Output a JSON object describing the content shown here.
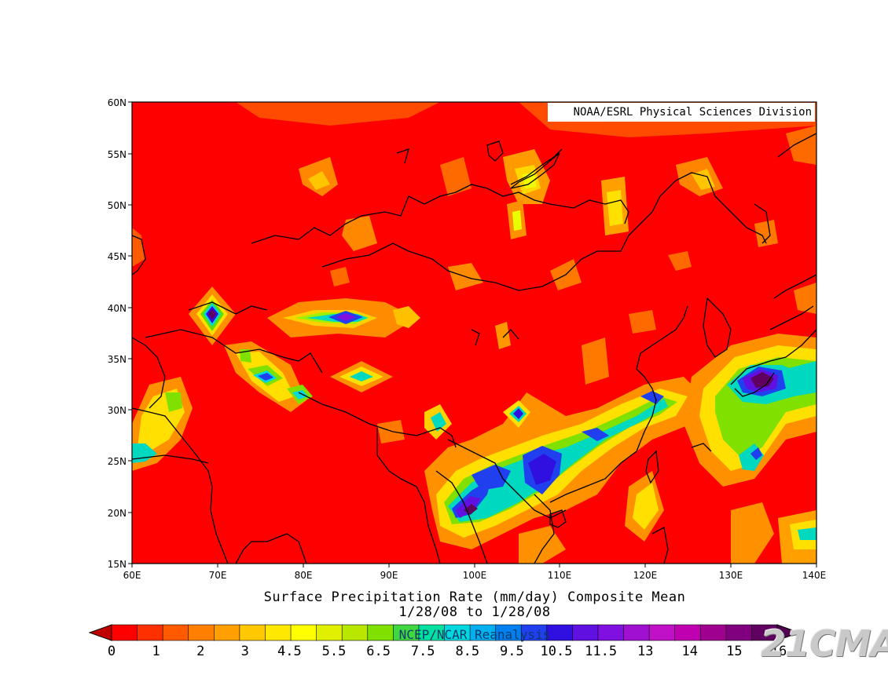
{
  "credit": "NOAA/ESRL Physical Sciences Division",
  "title_line1": "Surface Precipitation Rate (mm/day) Composite Mean",
  "title_line2": "1/28/08  to 1/28/08",
  "source_label": "NCEP/NCAR Reanalysis",
  "watermark": "21CMA",
  "lat_ticks": [
    "60N",
    "55N",
    "50N",
    "45N",
    "40N",
    "35N",
    "30N",
    "25N",
    "20N",
    "15N"
  ],
  "lon_ticks": [
    "60E",
    "70E",
    "80E",
    "90E",
    "100E",
    "110E",
    "120E",
    "130E",
    "140E"
  ],
  "colorbar": {
    "labels": [
      "0",
      "1",
      "2",
      "3",
      "4.5",
      "5.5",
      "6.5",
      "7.5",
      "8.5",
      "9.5",
      "10.5",
      "11.5",
      "13",
      "14",
      "15",
      "16"
    ],
    "colors": [
      "#ff0000",
      "#ff3000",
      "#ff5a00",
      "#ff8000",
      "#ffa000",
      "#ffc800",
      "#ffe800",
      "#ffff00",
      "#e0f000",
      "#b8e800",
      "#80e000",
      "#40d840",
      "#00e0a0",
      "#00d8e0",
      "#00b0f0",
      "#0080f0",
      "#2040f0",
      "#3010e0",
      "#6010e0",
      "#8010e0",
      "#a010d0",
      "#c010c8",
      "#c000b0",
      "#a00090",
      "#800080",
      "#600060"
    ]
  },
  "colors": {
    "background": "#ff0000",
    "coast": "#000000"
  }
}
